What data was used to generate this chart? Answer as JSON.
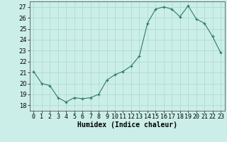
{
  "x": [
    0,
    1,
    2,
    3,
    4,
    5,
    6,
    7,
    8,
    9,
    10,
    11,
    12,
    13,
    14,
    15,
    16,
    17,
    18,
    19,
    20,
    21,
    22,
    23
  ],
  "y": [
    21.1,
    20.0,
    19.8,
    18.7,
    18.3,
    18.7,
    18.6,
    18.7,
    19.0,
    20.3,
    20.8,
    21.1,
    21.6,
    22.5,
    25.5,
    26.8,
    27.0,
    26.8,
    26.1,
    27.1,
    25.9,
    25.5,
    24.3,
    22.8
  ],
  "xlabel": "Humidex (Indice chaleur)",
  "ylim": [
    17.5,
    27.5
  ],
  "xlim": [
    -0.5,
    23.5
  ],
  "yticks": [
    18,
    19,
    20,
    21,
    22,
    23,
    24,
    25,
    26,
    27
  ],
  "xtick_labels": [
    "0",
    "1",
    "2",
    "3",
    "4",
    "5",
    "6",
    "7",
    "8",
    "9",
    "10",
    "11",
    "12",
    "13",
    "14",
    "15",
    "16",
    "17",
    "18",
    "19",
    "20",
    "21",
    "22",
    "23"
  ],
  "line_color": "#2d7a6e",
  "marker": "+",
  "bg_color": "#cceee8",
  "grid_color": "#a8d8d0",
  "label_fontsize": 7,
  "tick_fontsize": 6
}
